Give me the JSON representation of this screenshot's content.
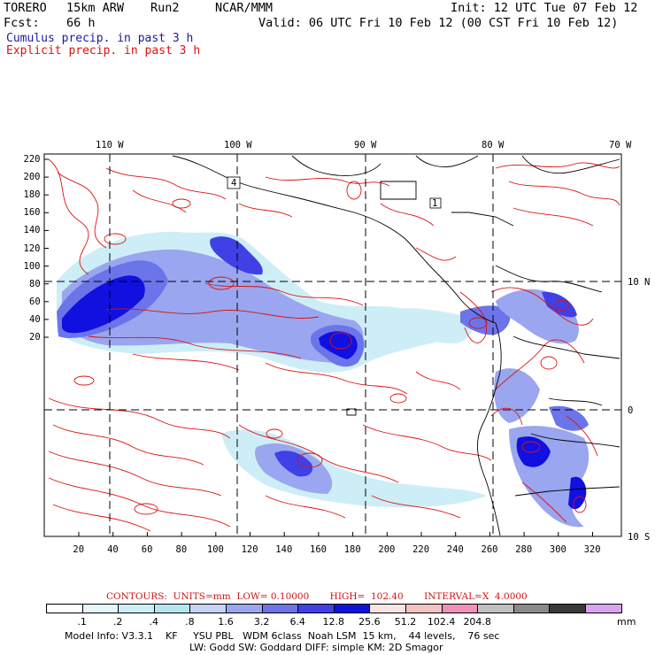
{
  "header": {
    "model": "TORERO",
    "resolution": "15km ARW",
    "run": "Run2",
    "org": "NCAR/MMM",
    "init": "Init: 12 UTC Tue 07 Feb 12",
    "fcst_label": "Fcst:",
    "fcst_value": "66 h",
    "valid": "Valid: 06 UTC Fri 10 Feb 12 (00 CST Fri 10 Feb 12)",
    "line_cumulus": "Cumulus precip. in past 3 h",
    "line_explicit": "Explicit precip. in past 3 h"
  },
  "colors": {
    "cumulus_label": "#1a1aa0",
    "explicit_label": "#dd1111",
    "contour": "#dd1111",
    "coast": "#000000"
  },
  "axes": {
    "top_lon_labels": [
      "110 W",
      "100 W",
      "90 W",
      "80 W",
      "70 W"
    ],
    "right_lat_labels": [
      "10 N",
      "0",
      "10 S"
    ],
    "y_ticks": [
      "220",
      "200",
      "180",
      "160",
      "140",
      "120",
      "100",
      "80",
      "60",
      "40",
      "20"
    ],
    "x_ticks": [
      "20",
      "40",
      "60",
      "80",
      "100",
      "120",
      "140",
      "160",
      "180",
      "200",
      "220",
      "240",
      "260",
      "280",
      "300",
      "320"
    ]
  },
  "map": {
    "station_labels": [
      "4",
      "1"
    ]
  },
  "contour_info": {
    "text": "CONTOURS:  UNITS=mm  LOW= 0.10000       HIGH=  102.40       INTERVAL=X  4.0000"
  },
  "legend": {
    "colors": [
      "#ffffff",
      "#e6f6fb",
      "#cdeef6",
      "#b4e6f2",
      "#c8d2f5",
      "#9aa6ef",
      "#6c74ea",
      "#3f40e6",
      "#1010e0",
      "#f8e4e4",
      "#f5c2c2",
      "#f08fb8",
      "#c0c0c0",
      "#8a8a8a",
      "#3a3a3a",
      "#d8a4f0"
    ],
    "labels": [
      ".1",
      ".2",
      ".4",
      ".8",
      "1.6",
      "3.2",
      "6.4",
      "12.8",
      "25.6",
      "51.2",
      "102.4",
      "204.8"
    ],
    "units": "mm"
  },
  "footer": {
    "line1": "Model Info: V3.3.1    KF     YSU PBL   WDM 6class  Noah LSM  15 km,    44 levels,    76 sec",
    "line2": "LW: Godd SW: Goddard DIFF: simple KM: 2D Smagor"
  }
}
